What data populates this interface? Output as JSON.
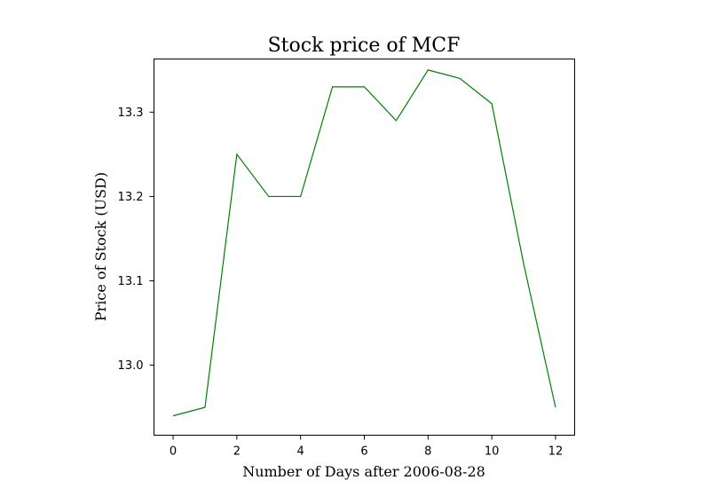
{
  "chart_data": {
    "type": "line",
    "title": "Stock price of MCF",
    "xlabel": "Number of Days after 2006-08-28",
    "ylabel": "Price of Stock (USD)",
    "xlim": [
      -0.6,
      12.6
    ],
    "ylim": [
      12.917,
      13.363
    ],
    "x_ticks": [
      0,
      2,
      4,
      6,
      8,
      10,
      12
    ],
    "y_ticks": [
      13.0,
      13.1,
      13.2,
      13.3
    ],
    "y_tick_labels": [
      "13.0",
      "13.1",
      "13.2",
      "13.3"
    ],
    "grid": false,
    "series": [
      {
        "color": "#008000",
        "x": [
          0,
          1,
          2,
          3,
          4,
          5,
          6,
          7,
          8,
          9,
          10,
          11,
          12
        ],
        "values": [
          12.94,
          12.95,
          13.25,
          13.2,
          13.2,
          13.33,
          13.33,
          13.29,
          13.35,
          13.34,
          13.31,
          13.12,
          12.95
        ]
      }
    ]
  }
}
